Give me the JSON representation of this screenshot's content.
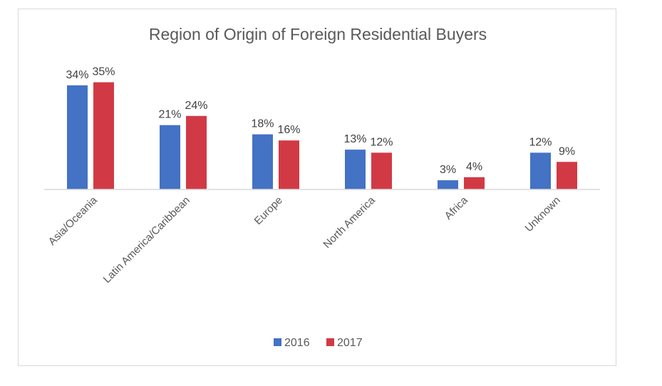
{
  "chart_data": {
    "type": "bar",
    "title": "Region of Origin of Foreign Residential Buyers",
    "categories": [
      "Asia/Oceania",
      "Latin America/Caribbean",
      "Europe",
      "North America",
      "Africa",
      "Unknown"
    ],
    "series": [
      {
        "name": "2016",
        "color": "#4472c4",
        "values": [
          34,
          21,
          18,
          13,
          3,
          12
        ],
        "labels": [
          "34%",
          "21%",
          "18%",
          "13%",
          "3%",
          "12%"
        ]
      },
      {
        "name": "2017",
        "color": "#d13a45",
        "values": [
          35,
          24,
          16,
          12,
          4,
          9
        ],
        "labels": [
          "35%",
          "24%",
          "16%",
          "12%",
          "4%",
          "9%"
        ]
      }
    ],
    "xlabel": "",
    "ylabel": "",
    "ylim": [
      0,
      40
    ],
    "legend_position": "bottom",
    "grid": false
  }
}
